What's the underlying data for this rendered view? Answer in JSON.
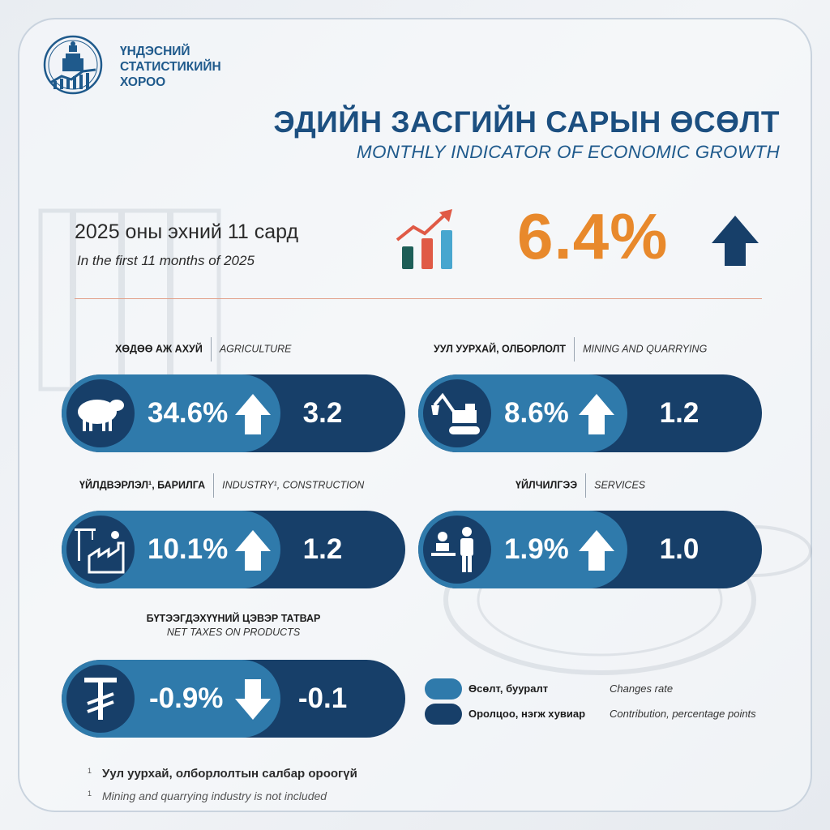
{
  "org": {
    "line1": "ҮНДЭСНИЙ",
    "line2": "СТАТИСТИКИЙН",
    "line3": "ХОРОО"
  },
  "title": {
    "mn": "ЭДИЙН ЗАСГИЙН САРЫН ӨСӨЛТ",
    "en": "MONTHLY INDICATOR OF ECONOMIC GROWTH"
  },
  "period": {
    "mn": "2025 оны эхний 11 сард",
    "en": "In the first 11 months of 2025"
  },
  "total": {
    "value": "6.4%",
    "direction": "up"
  },
  "colors": {
    "rate": "#2f7aab",
    "contribution": "#173f69",
    "accent": "#e8892c",
    "title": "#1c4f80"
  },
  "sectors": [
    {
      "label_mn": "ХӨДӨӨ АЖ АХУЙ",
      "label_en": "AGRICULTURE",
      "rate": "34.6%",
      "contribution": "3.2",
      "direction": "up",
      "icon": "sheep-icon"
    },
    {
      "label_mn": "УУЛ УУРХАЙ, ОЛБОРЛОЛТ",
      "label_en": "MINING AND QUARRYING",
      "rate": "8.6%",
      "contribution": "1.2",
      "direction": "up",
      "icon": "excavator-icon"
    },
    {
      "label_mn": "ҮЙЛДВЭРЛЭЛ¹, БАРИЛГА",
      "label_en": "INDUSTRY¹, CONSTRUCTION",
      "rate": "10.1%",
      "contribution": "1.2",
      "direction": "up",
      "icon": "factory-crane-icon"
    },
    {
      "label_mn": "ҮЙЛЧИЛГЭЭ",
      "label_en": "SERVICES",
      "rate": "1.9%",
      "contribution": "1.0",
      "direction": "up",
      "icon": "service-people-icon"
    },
    {
      "label_mn": "БҮТЭЭГДЭХҮҮНИЙ ЦЭВЭР ТАТВАР",
      "label_en": "NET TAXES ON PRODUCTS",
      "rate": "-0.9%",
      "contribution": "-0.1",
      "direction": "down",
      "icon": "tugrik-icon"
    }
  ],
  "legend": {
    "rate_mn": "Өсөлт, бууралт",
    "rate_en": "Changes rate",
    "contrib_mn": "Оролцоо, нэгж хувиар",
    "contrib_en": "Contribution, percentage points"
  },
  "footnote": {
    "mark": "1",
    "mn": "Уул уурхай, олборлолтын салбар ороогүй",
    "en": "Mining and quarrying industry is not included"
  }
}
